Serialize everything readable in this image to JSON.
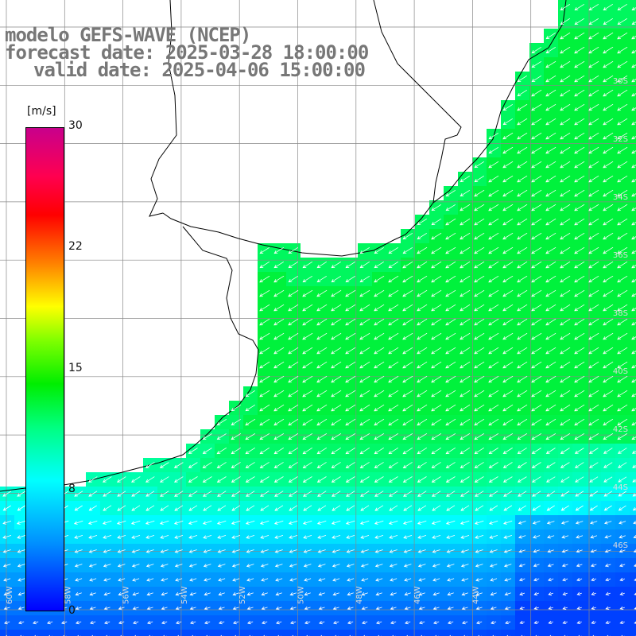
{
  "header": {
    "model": "modelo GEFS-WAVE (NCEP)",
    "forecast": "forecast date: 2025-03-28 18:00:00",
    "valid": "valid date: 2025-04-06 15:00:00"
  },
  "colorbar": {
    "units": "[m/s]",
    "ticks": [
      "30",
      "22",
      "15",
      "8",
      "0"
    ],
    "range": [
      0,
      30
    ],
    "colors": [
      "#0000ff",
      "#0090ff",
      "#00ffff",
      "#00ff80",
      "#00ee00",
      "#80ff00",
      "#ffff00",
      "#ff8000",
      "#ff0000",
      "#c8008c"
    ]
  },
  "axis_labels": {
    "lat": [
      "30S",
      "32S",
      "34S",
      "36S",
      "38S",
      "40S",
      "42S",
      "44S",
      "46S"
    ],
    "lon": [
      "60W",
      "58W",
      "56W",
      "54W",
      "52W",
      "50W",
      "48W",
      "46W",
      "44W"
    ]
  },
  "map": {
    "land_color": "#ffffff",
    "grid_color": "#888888",
    "coast_color": "#000000",
    "arrow_color": "#ffffff",
    "field": "wind speed",
    "wind_direction": "from NE (arrows pointing SW)"
  }
}
